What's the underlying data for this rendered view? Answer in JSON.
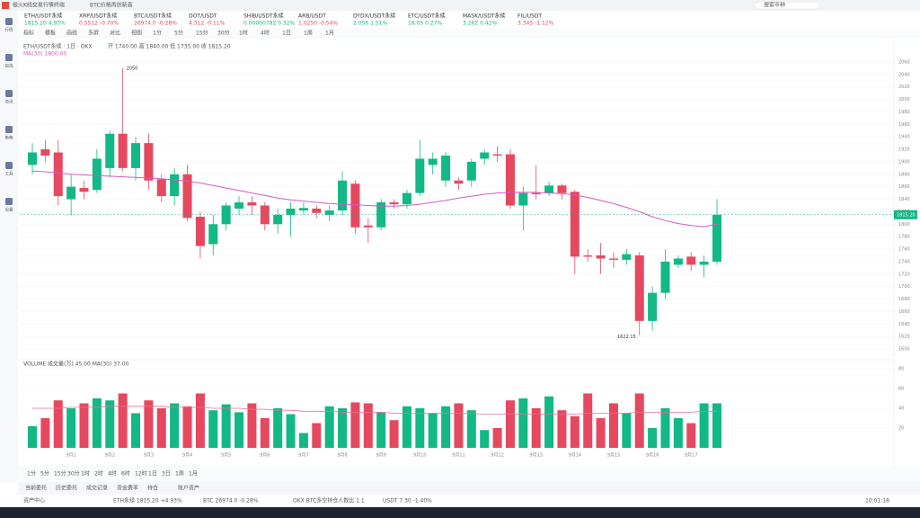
{
  "window_title": "极火K线交易行情终端",
  "tab_title": "BTC价格再创新高",
  "tickers": [
    {
      "name": "ETH/USDT永续",
      "quote": "1815.20 4.93%"
    },
    {
      "name": "XRP/USDT永续",
      "quote": "0.5512 -0.70%"
    },
    {
      "name": "BTC/USDT永续",
      "quote": "26974.0 -0.28%"
    },
    {
      "name": "DOT/USDT",
      "quote": "4.312 -0.11%"
    },
    {
      "name": "SHIB/USDT永续",
      "quote": "0.00000782 0.32%"
    },
    {
      "name": "ARB/USDT",
      "quote": "1.0250 -0.54%"
    },
    {
      "name": "DYDX/USDT永续",
      "quote": "2.056 1.51%"
    },
    {
      "name": "ETC/USDT永续",
      "quote": "16.05 0.27%"
    },
    {
      "name": "MASK/USDT永续",
      "quote": "3.262 0.42%"
    },
    {
      "name": "FIL/USDT",
      "quote": "3.345 -1.12%"
    }
  ],
  "toolbar": [
    "指标",
    "模板",
    "画线",
    "多屏",
    "对比",
    "视图",
    "1分",
    "5分",
    "15分",
    "30分",
    "1时",
    "4时",
    "1日",
    "1周",
    "1月"
  ],
  "search_placeholder": "搜索币种",
  "chart": {
    "type": "candlestick",
    "symbol_title": "ETH/USDT永续 · 1日 · OKX",
    "ohlc_line": "开 1740.00 高 1840.00 低 1735.00 收 1815.20",
    "indicator_label": "MA(30) 1800.00",
    "up_color": "#12b886",
    "down_color": "#e5485f",
    "ma_color": "#d45bc4",
    "open": [
      1895,
      1920,
      1915,
      1840,
      1858,
      1855,
      1890,
      1945,
      1890,
      1930,
      1872,
      1845,
      1880,
      1812,
      1768,
      1800,
      1825,
      1835,
      1830,
      1800,
      1815,
      1822,
      1825,
      1815,
      1822,
      1865,
      1798,
      1795,
      1835,
      1832,
      1850,
      1895,
      1870,
      1870,
      1870,
      1905,
      1912,
      1912,
      1830,
      1850,
      1850,
      1862,
      1852,
      1750,
      1750,
      1745,
      1743,
      1750,
      1645,
      1690,
      1735,
      1748,
      1735,
      1740
    ],
    "close": [
      1915,
      1910,
      1845,
      1860,
      1852,
      1905,
      1945,
      1890,
      1930,
      1870,
      1845,
      1880,
      1810,
      1765,
      1800,
      1830,
      1835,
      1830,
      1800,
      1815,
      1825,
      1826,
      1818,
      1822,
      1870,
      1795,
      1795,
      1835,
      1832,
      1850,
      1905,
      1905,
      1910,
      1865,
      1900,
      1915,
      1910,
      1830,
      1850,
      1848,
      1862,
      1850,
      1748,
      1748,
      1745,
      1743,
      1752,
      1645,
      1690,
      1740,
      1745,
      1735,
      1740,
      1815.2
    ],
    "high": [
      1930,
      1935,
      1935,
      1880,
      1870,
      1920,
      1950,
      2050,
      1940,
      1945,
      1880,
      1890,
      1895,
      1820,
      1815,
      1835,
      1845,
      1845,
      1835,
      1825,
      1835,
      1835,
      1830,
      1830,
      1885,
      1870,
      1810,
      1840,
      1840,
      1855,
      1935,
      1915,
      1915,
      1875,
      1905,
      1920,
      1925,
      1920,
      1860,
      1895,
      1868,
      1865,
      1855,
      1760,
      1770,
      1755,
      1760,
      1755,
      1700,
      1760,
      1750,
      1755,
      1750,
      1840
    ],
    "low": [
      1880,
      1900,
      1830,
      1815,
      1840,
      1850,
      1875,
      1885,
      1870,
      1855,
      1835,
      1830,
      1805,
      1745,
      1750,
      1790,
      1815,
      1815,
      1790,
      1785,
      1780,
      1815,
      1810,
      1805,
      1815,
      1785,
      1770,
      1790,
      1825,
      1825,
      1845,
      1880,
      1860,
      1855,
      1860,
      1895,
      1900,
      1825,
      1790,
      1840,
      1845,
      1840,
      1720,
      1740,
      1720,
      1730,
      1735,
      1622.15,
      1630,
      1680,
      1730,
      1725,
      1715,
      1735
    ],
    "ma": [
      1885,
      1884,
      1882,
      1880,
      1879,
      1878,
      1877,
      1876,
      1875,
      1874,
      1873,
      1871,
      1869,
      1866,
      1862,
      1858,
      1854,
      1850,
      1846,
      1842,
      1839,
      1837,
      1835,
      1833,
      1832,
      1831,
      1830,
      1829,
      1829,
      1830,
      1832,
      1835,
      1838,
      1842,
      1845,
      1848,
      1850,
      1851,
      1851,
      1851,
      1850,
      1849,
      1847,
      1843,
      1838,
      1833,
      1827,
      1820,
      1812,
      1806,
      1801,
      1798,
      1796,
      1800
    ],
    "high_label": "2050",
    "low_label": "1622.15",
    "price_tag": "1815.20",
    "ylim": [
      1590,
      2070
    ],
    "yticks": [
      1600,
      1620,
      1640,
      1660,
      1680,
      1700,
      1720,
      1740,
      1760,
      1780,
      1800,
      1820,
      1840,
      1860,
      1880,
      1900,
      1920,
      1940,
      1960,
      1980,
      2000,
      2020,
      2040,
      2060
    ],
    "categories": [
      null,
      null,
      null,
      "9月1",
      null,
      null,
      "9月2",
      null,
      null,
      "9月3",
      null,
      null,
      "9月4",
      null,
      null,
      "9月5",
      null,
      null,
      "9月6",
      null,
      null,
      "9月7",
      null,
      null,
      "9月8",
      null,
      null,
      "9月9",
      null,
      null,
      "9月10",
      null,
      null,
      "9月11",
      null,
      null,
      "9月12",
      null,
      null,
      "9月13",
      null,
      null,
      "9月14",
      null,
      null,
      "9月15",
      null,
      null,
      "9月16",
      null,
      null,
      "9月17",
      null,
      null
    ]
  },
  "volume": {
    "label": "VOLUME  成交量(万) 45.00  MA(30) 37.00",
    "ma_color": "#e8709a",
    "values": [
      22,
      30,
      48,
      40,
      45,
      50,
      48,
      55,
      35,
      48,
      40,
      45,
      42,
      55,
      38,
      44,
      36,
      45,
      30,
      40,
      34,
      15,
      25,
      42,
      40,
      46,
      45,
      36,
      28,
      42,
      40,
      35,
      42,
      45,
      38,
      18,
      20,
      48,
      50,
      40,
      52,
      38,
      32,
      55,
      30,
      45,
      35,
      55,
      20,
      40,
      30,
      25,
      45,
      45
    ],
    "ma": [
      40,
      40,
      40,
      41,
      41,
      41,
      42,
      42,
      42,
      42,
      42,
      41,
      41,
      41,
      40,
      40,
      40,
      39,
      39,
      38,
      38,
      37,
      37,
      37,
      36,
      36,
      36,
      36,
      35,
      35,
      35,
      35,
      35,
      35,
      35,
      34,
      34,
      34,
      34,
      34,
      34,
      34,
      34,
      35,
      35,
      35,
      35,
      36,
      36,
      36,
      36,
      36,
      37,
      37
    ],
    "ylim": [
      0,
      80
    ],
    "yticks": [
      20,
      40,
      60,
      80
    ]
  },
  "sidebar": [
    "行情",
    "自选",
    "资讯",
    "策略",
    "工具",
    "设置"
  ],
  "timeframes": [
    "1分",
    "5分",
    "15分",
    "30分",
    "1时",
    "2时",
    "4时",
    "6时",
    "12时",
    "1日",
    "3日",
    "1周",
    "1月"
  ],
  "bottom_tabs": [
    "当前委托",
    "历史委托",
    "成交记录",
    "资金费率",
    "持仓",
    "账户资产"
  ],
  "status": [
    "资产中心",
    "ETH永续 1815.20 +4.93%",
    "BTC 26974.0 -0.28%",
    "OKX BTC多空持仓人数比 1.1",
    "USDT 7.30 -1.40%"
  ],
  "clock": "10:01:18"
}
